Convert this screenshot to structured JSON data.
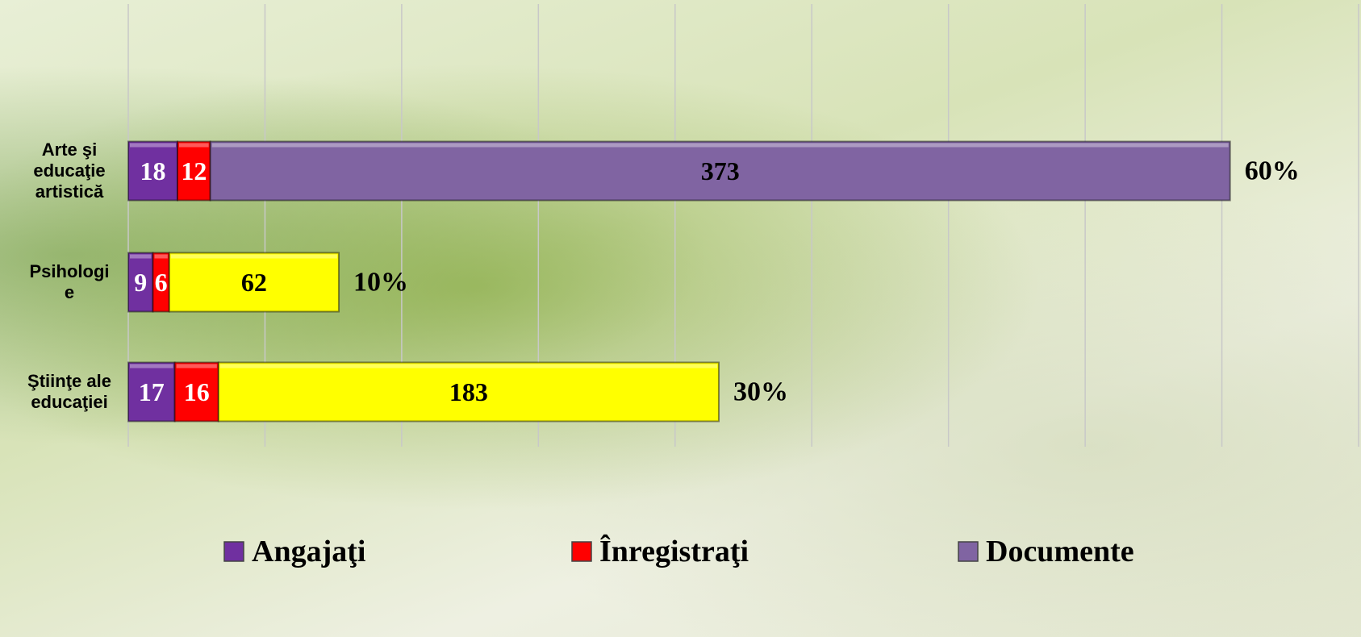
{
  "chart_data": {
    "type": "stacked-bar-horizontal",
    "categories": [
      "Arte şi educaţie artistică",
      "Psihologie",
      "Ştiinţe ale educaţiei"
    ],
    "series": [
      {
        "name": "Angajaţi",
        "color": "#7030a0",
        "colors": [
          "#7030a0",
          "#7030a0",
          "#7030a0"
        ],
        "values": [
          18,
          9,
          17
        ]
      },
      {
        "name": "Înregistraţi",
        "color": "#ff0000",
        "colors": [
          "#ff0000",
          "#ff0000",
          "#ff0000"
        ],
        "values": [
          12,
          6,
          16
        ]
      },
      {
        "name": "Documente",
        "color": "#8064a2",
        "colors": [
          "#8064a2",
          "#ffff00",
          "#ffff00"
        ],
        "values": [
          373,
          62,
          183
        ]
      }
    ],
    "annotations": [
      "60%",
      "10%",
      "30%"
    ],
    "xlim": [
      0,
      450
    ],
    "xticks": [
      0,
      50,
      100,
      150,
      200,
      250,
      300,
      350,
      400,
      450
    ],
    "grid": true
  }
}
